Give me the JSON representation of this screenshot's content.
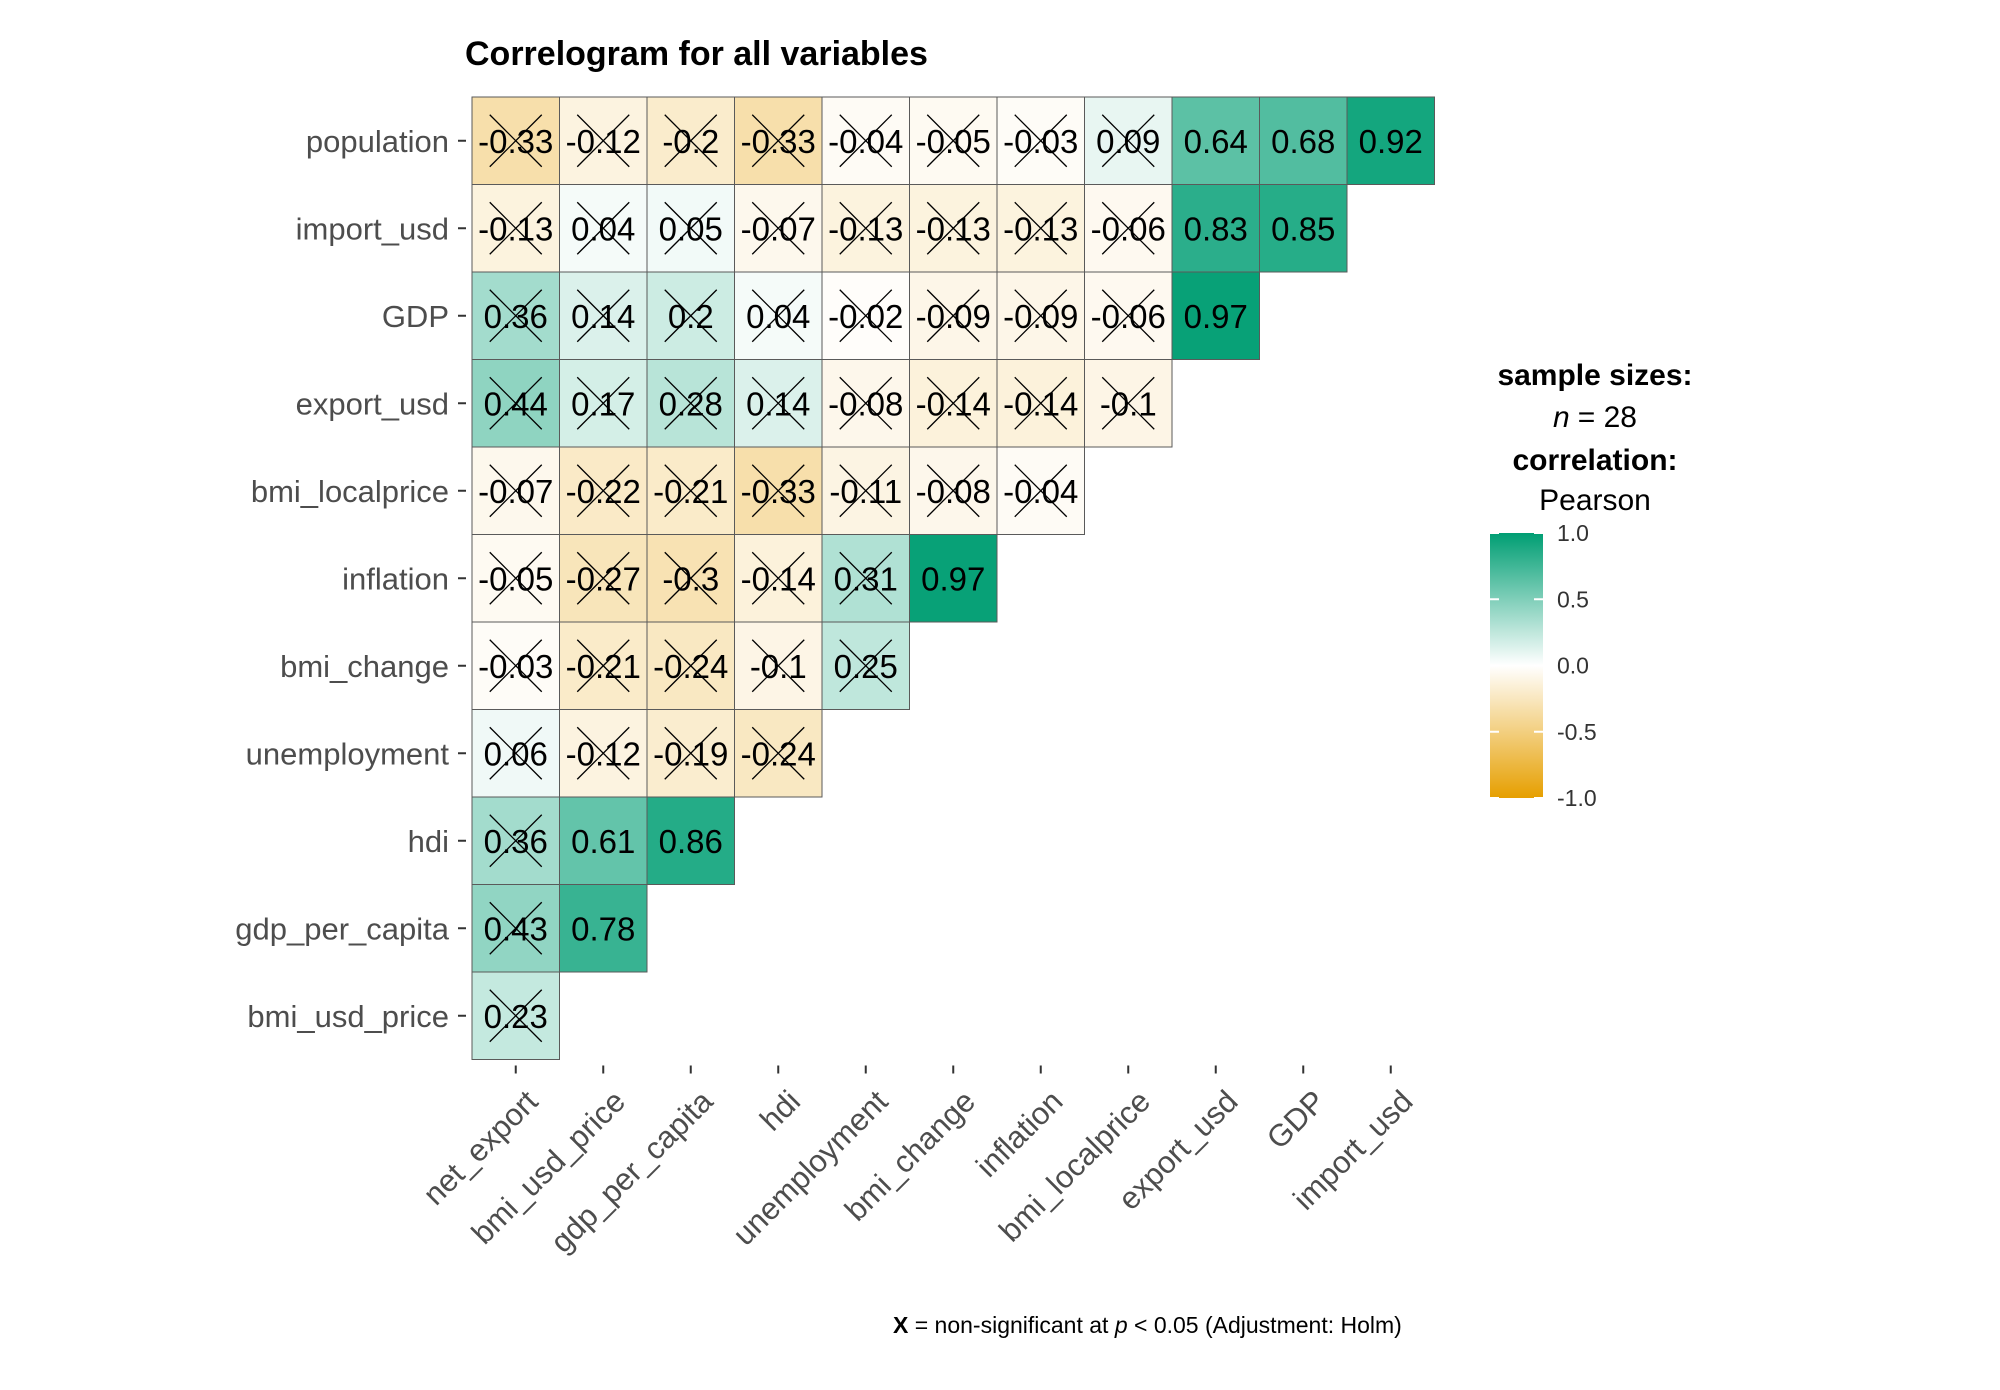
{
  "chart_data": {
    "type": "heatmap",
    "title": "Correlogram for all variables",
    "row_labels": [
      "population",
      "import_usd",
      "GDP",
      "export_usd",
      "bmi_localprice",
      "inflation",
      "bmi_change",
      "unemployment",
      "hdi",
      "gdp_per_capita",
      "bmi_usd_price"
    ],
    "col_labels": [
      "net_export",
      "bmi_usd_price",
      "gdp_per_capita",
      "hdi",
      "unemployment",
      "bmi_change",
      "inflation",
      "bmi_localprice",
      "export_usd",
      "GDP",
      "import_usd"
    ],
    "values": [
      [
        "-0.33",
        "-0.12",
        "-0.2",
        "-0.33",
        "-0.04",
        "-0.05",
        "-0.03",
        "0.09",
        "0.64",
        "0.68",
        "0.92"
      ],
      [
        "-0.13",
        "0.04",
        "0.05",
        "-0.07",
        "-0.13",
        "-0.13",
        "-0.13",
        "-0.06",
        "0.83",
        "0.85"
      ],
      [
        "0.36",
        "0.14",
        "0.2",
        "0.04",
        "-0.02",
        "-0.09",
        "-0.09",
        "-0.06",
        "0.97"
      ],
      [
        "0.44",
        "0.17",
        "0.28",
        "0.14",
        "-0.08",
        "-0.14",
        "-0.14",
        "-0.1"
      ],
      [
        "-0.07",
        "-0.22",
        "-0.21",
        "-0.33",
        "-0.11",
        "-0.08",
        "-0.04"
      ],
      [
        "-0.05",
        "-0.27",
        "-0.3",
        "-0.14",
        "0.31",
        "0.97"
      ],
      [
        "-0.03",
        "-0.21",
        "-0.24",
        "-0.1",
        "0.25"
      ],
      [
        "0.06",
        "-0.12",
        "-0.19",
        "-0.24"
      ],
      [
        "0.36",
        "0.61",
        "0.86"
      ],
      [
        "0.43",
        "0.78"
      ],
      [
        "0.23"
      ]
    ],
    "significant": [
      [
        false,
        false,
        false,
        false,
        false,
        false,
        false,
        false,
        true,
        true,
        true
      ],
      [
        false,
        false,
        false,
        false,
        false,
        false,
        false,
        false,
        true,
        true
      ],
      [
        false,
        false,
        false,
        false,
        false,
        false,
        false,
        false,
        true
      ],
      [
        false,
        false,
        false,
        false,
        false,
        false,
        false,
        false
      ],
      [
        false,
        false,
        false,
        false,
        false,
        false,
        false
      ],
      [
        false,
        false,
        false,
        false,
        false,
        true
      ],
      [
        false,
        false,
        false,
        false,
        false
      ],
      [
        false,
        false,
        false,
        false
      ],
      [
        false,
        true,
        true
      ],
      [
        false,
        true
      ],
      [
        false
      ]
    ],
    "legend": {
      "sample_title": "sample sizes:",
      "n_label": "n",
      "n_equals": "= 28",
      "corr_title": "correlation:",
      "corr_method": "Pearson",
      "ticks": [
        "1.0",
        "0.5",
        "0.0",
        "-0.5",
        "-1.0"
      ],
      "tick_values": [
        1.0,
        0.5,
        0.0,
        -0.5,
        -1.0
      ]
    },
    "colors": {
      "low": "#E69F00",
      "mid": "#FFFFFF",
      "high": "#009E73"
    },
    "footnote": {
      "x": "X",
      "pre": " = non-significant at ",
      "p": "p",
      "post": " < 0.05 (Adjustment: Holm)"
    }
  }
}
